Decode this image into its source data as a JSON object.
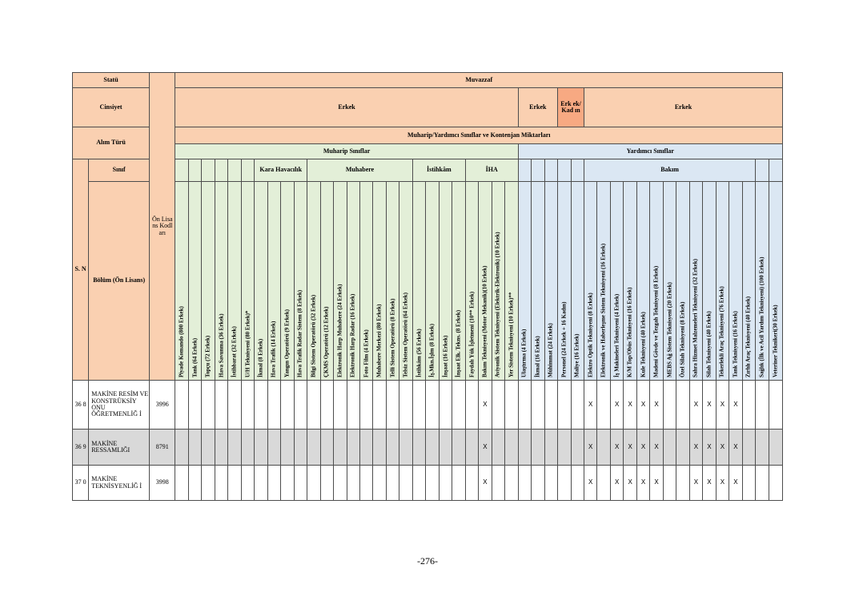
{
  "header": {
    "statu": "Statü",
    "muvazzaf": "Muvazzaf",
    "cinsiyet": "Cinsiyet",
    "erkek_1": "Erkek",
    "erkek_2": "Erkek",
    "erkek_kadin": "Erk ek/ Kad ın",
    "erkek_3": "Erkek",
    "alim_turu": "Alım Türü",
    "kontenjan": "Muharip/Yardımcı Sınıflar ve Kontenjan Miktarları",
    "muharip": "Muharip Sınıflar",
    "yardimci": "Yardımcı Sınıflar",
    "sn": "S. N",
    "sinif": "Sınıf",
    "on_lisans_kodlari": "Ön Lisa ns Kodl arı",
    "bolum": "Bölüm (Ön Lisans)",
    "groups": {
      "kara_havacilik": "Kara Havacılık",
      "muhabere": "Muhabere",
      "istihkam": "İstihkâm",
      "iha": "İHA",
      "bakim": "Bakım"
    }
  },
  "columns": [
    "Piyade Komando (800 Erkek)",
    "Tank (64 Erkek)",
    "Topçu (72 Erkek)",
    "Hava Savunma (36 Erkek)",
    "İstihbarat (32 Erkek)",
    "U/H Teknisyeni (80 Erkek)*",
    "İkmal (8 Erkek)",
    "Hava Trafik (14 Erkek)",
    "Yangın Operatörü (9 Erkek)",
    "Hava Trafik Radar Sistem (8 Erkek)",
    "Bilgi Sistem Operatörü (32 Erkek)",
    "ÇKMS Operatörü (12 Erkek)",
    "Elektronik Harp Muhabere (24 Erkek)",
    "Elektronik Harp Radar (16 Erkek)",
    "Foto Film (4 Erkek)",
    "Muhabere Merkezi (80 Erkek)",
    "Telli Sistem Operatörü (8 Erkek)",
    "Telsiz Sistem Operatörü (64 Erkek)",
    "İstihkâm (56 Erkek)",
    "İş.Mkn.İşlm (8 Erkek)",
    "İnşaat (16 Erkek)",
    "İnşaat Elk. Tekns. (8 Erkek)",
    "Faydalı Yük İşletmeni (10** Erkek)",
    "Bakım Teknisyeni (Motor Mekanik)(10 Erkek)",
    "Aviyonik Sistem Teknisyeni (Elektrik-Elektronik) (10 Erkek)",
    "Yer Sistem Teknisyeni (10 Erkek)**",
    "Ulaştırma (4 Erkek)",
    "İkmal (16 Erkek)",
    "Mühimmat (24 Erkek)",
    "Personel (24 Erkek + 16 Kadın)",
    "Maliye (16 Erkek)",
    "Elektro Optik Teknisyeni (8 Erkek)",
    "Elektronik ve Haberleşme Sistem Teknisyeni (16 Erkek)",
    "İş Makineleri Teknisyeni (4 Erkek)",
    "K/M Top/Obüs Teknisyeni (16 Erkek)",
    "Kule Teknisyeni (40 Erkek)",
    "Madeni Gövde ve Tezgah Teknisyeni (8 Erkek)",
    "MEBS Ağ Sistem Teknisyeni (20 Erkek)",
    "Özel Silah Teknisyeni (8 Erkek)",
    "Sahra Hizmet Malzemeleri Teknisyeni (32 Erkek)",
    "Silah Teknisyeni (40 Erkek)",
    "Tekerlekli Araç Teknisyeni (76 Erkek)",
    "Tank Teknisyeni (16 Erkek)",
    "Zırhlı Araç Teknisyeni (40 Erkek)",
    "Sağlık (İlk ve Acil Yardım Teknisyeni) (100 Erkek)",
    "Veteriner Teknikeri(30 Erkek)"
  ],
  "rows": [
    {
      "sn": "36 8",
      "bolum": "MAKİNE RESİM VE KONSTRÜKSİY ONU ÖĞRETMENLİĞ İ",
      "kod": "3996",
      "marks": [
        "",
        "",
        "",
        "",
        "",
        "",
        "",
        "",
        "",
        "",
        "",
        "",
        "",
        "",
        "",
        "",
        "",
        "",
        "",
        "",
        "",
        "",
        "",
        "X",
        "",
        "",
        "",
        "",
        "",
        "",
        "",
        "X",
        "",
        "X",
        "X",
        "X",
        "X",
        "",
        "",
        "X",
        "X",
        "X",
        "X",
        "",
        "",
        ""
      ]
    },
    {
      "sn": "36 9",
      "bolum": "MAKİNE RESSAMLIĞI",
      "kod": "8791",
      "marks": [
        "",
        "",
        "",
        "",
        "",
        "",
        "",
        "",
        "",
        "",
        "",
        "",
        "",
        "",
        "",
        "",
        "",
        "",
        "",
        "",
        "",
        "",
        "",
        "X",
        "",
        "",
        "",
        "",
        "",
        "",
        "",
        "X",
        "",
        "X",
        "X",
        "X",
        "X",
        "",
        "",
        "X",
        "X",
        "X",
        "X",
        "",
        "",
        ""
      ]
    },
    {
      "sn": "37 0",
      "bolum": "MAKİNE TEKNİSYENLİĞ İ",
      "kod": "3998",
      "marks": [
        "",
        "",
        "",
        "",
        "",
        "",
        "",
        "",
        "",
        "",
        "",
        "",
        "",
        "",
        "",
        "",
        "",
        "",
        "",
        "",
        "",
        "",
        "",
        "X",
        "",
        "",
        "",
        "",
        "",
        "",
        "",
        "X",
        "",
        "X",
        "X",
        "X",
        "X",
        "",
        "",
        "X",
        "X",
        "X",
        "X",
        "",
        "",
        ""
      ]
    }
  ],
  "page_number": "-276-"
}
